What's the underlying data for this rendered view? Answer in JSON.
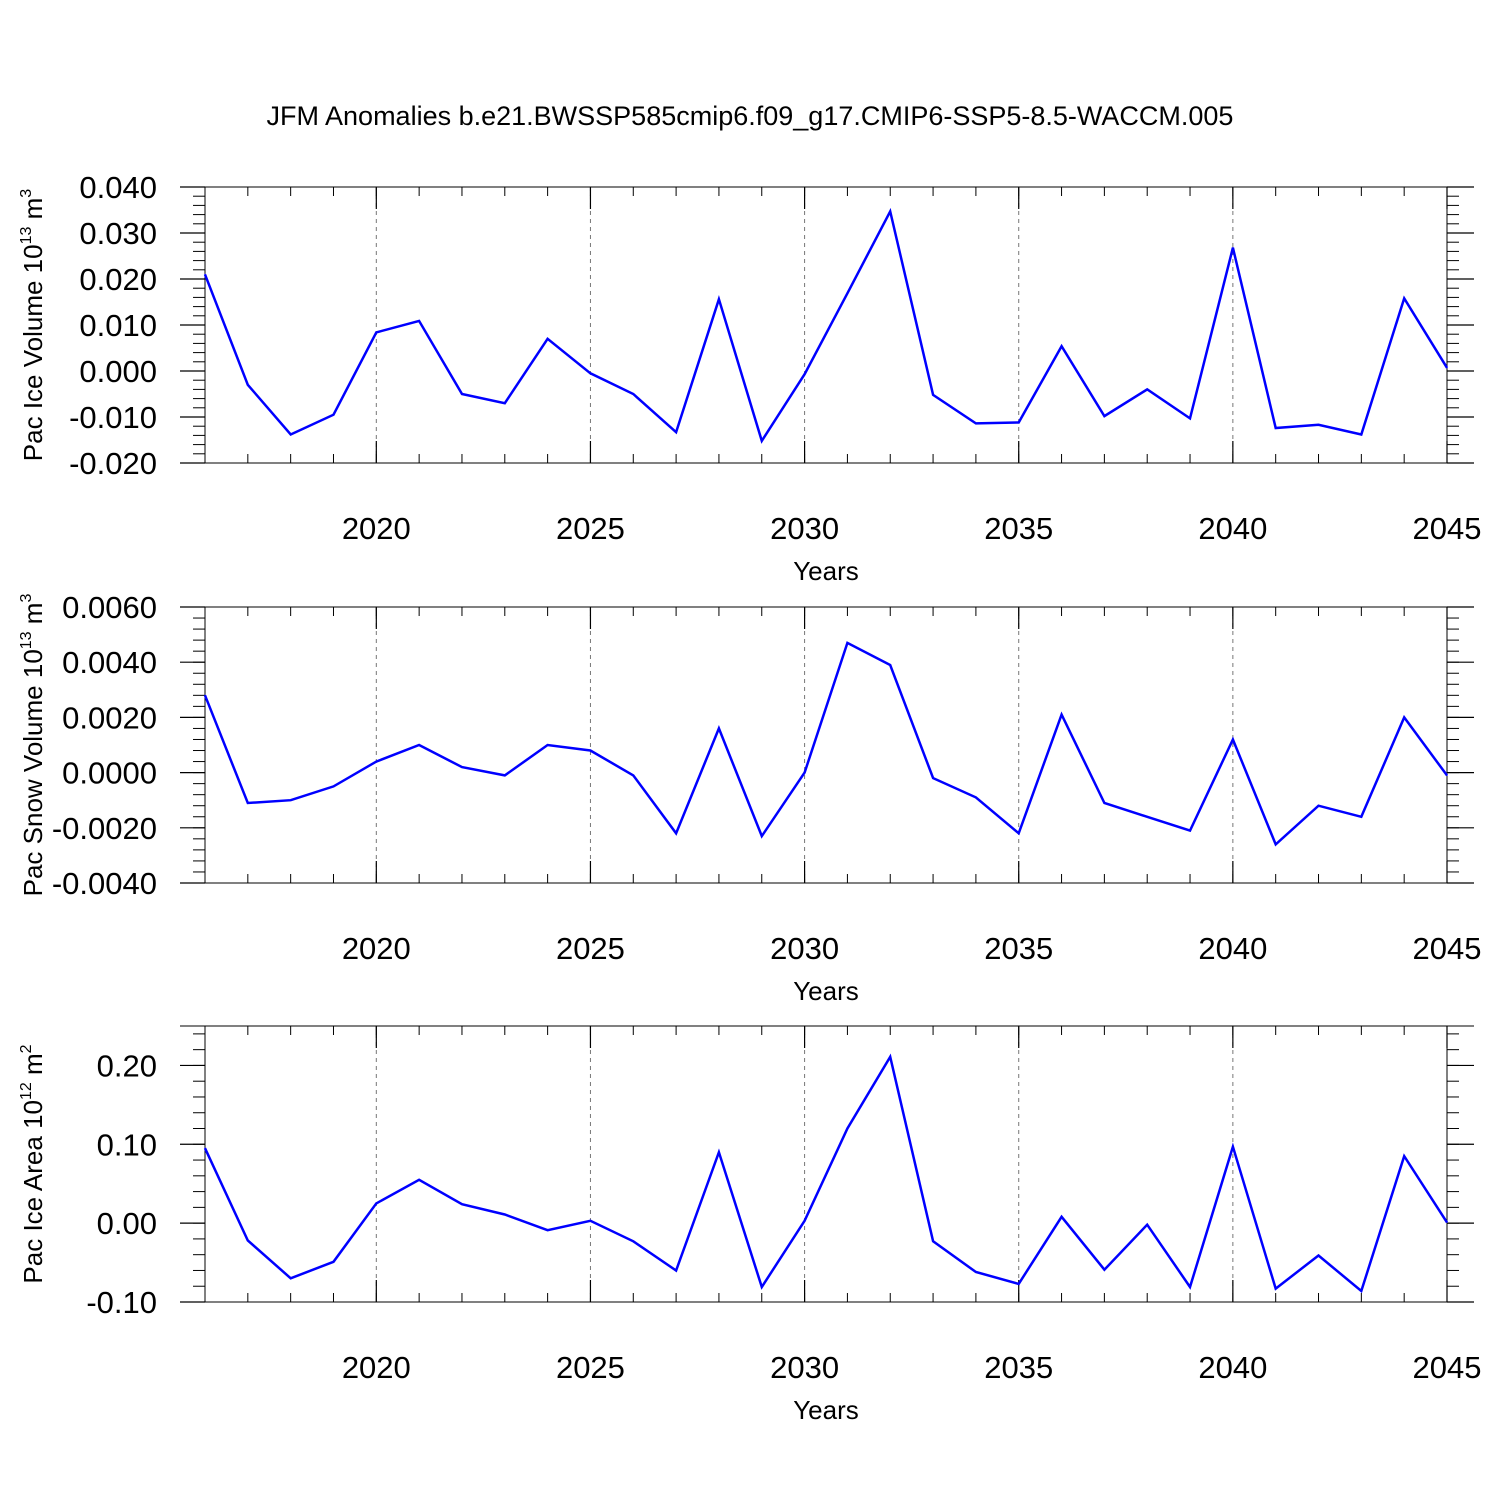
{
  "title": "JFM Anomalies b.e21.BWSSP585cmip6.f09_g17.CMIP6-SSP5-8.5-WACCM.005",
  "line_color": "#0000ff",
  "chart_data": [
    {
      "type": "line",
      "id": "ice-volume",
      "ylabel_main": "Pac Ice Volume 10",
      "ylabel_exp": "13",
      "ylabel_unit": " m",
      "ylabel_unit_exp": "3",
      "xlabel": "Years",
      "xlim": [
        2016,
        2045
      ],
      "ylim": [
        -0.02,
        0.04
      ],
      "yticks": [
        -0.02,
        -0.01,
        0.0,
        0.01,
        0.02,
        0.03,
        0.04
      ],
      "ytick_labels": [
        "-0.020",
        "-0.010",
        "0.000",
        "0.010",
        "0.020",
        "0.030",
        "0.040"
      ],
      "xticks": [
        2020,
        2025,
        2030,
        2035,
        2040,
        2045
      ],
      "xtick_labels": [
        "2020",
        "2025",
        "2030",
        "2035",
        "2040",
        "2045"
      ],
      "x": [
        2016,
        2017,
        2018,
        2019,
        2020,
        2021,
        2022,
        2023,
        2024,
        2025,
        2026,
        2027,
        2028,
        2029,
        2030,
        2031,
        2032,
        2033,
        2034,
        2035,
        2036,
        2037,
        2038,
        2039,
        2040,
        2041,
        2042,
        2043,
        2044,
        2045
      ],
      "values": [
        0.021,
        -0.003,
        -0.0138,
        -0.0095,
        0.0084,
        0.0109,
        -0.005,
        -0.007,
        0.007,
        -0.0005,
        -0.005,
        -0.0133,
        0.0156,
        -0.0152,
        -0.0007,
        0.0169,
        0.0347,
        -0.0052,
        -0.0114,
        -0.0112,
        0.0054,
        -0.0098,
        -0.004,
        -0.0103,
        0.0268,
        -0.0124,
        -0.0117,
        -0.0138,
        0.0158,
        0.0007
      ]
    },
    {
      "type": "line",
      "id": "snow-volume",
      "ylabel_main": "Pac Snow Volume 10",
      "ylabel_exp": "13",
      "ylabel_unit": " m",
      "ylabel_unit_exp": "3",
      "xlabel": "Years",
      "xlim": [
        2016,
        2045
      ],
      "ylim": [
        -0.004,
        0.006
      ],
      "yticks": [
        -0.004,
        -0.002,
        0.0,
        0.002,
        0.004,
        0.006
      ],
      "ytick_labels": [
        "-0.0040",
        "-0.0020",
        "0.0000",
        "0.0020",
        "0.0040",
        "0.0060"
      ],
      "xticks": [
        2020,
        2025,
        2030,
        2035,
        2040,
        2045
      ],
      "xtick_labels": [
        "2020",
        "2025",
        "2030",
        "2035",
        "2040",
        "2045"
      ],
      "x": [
        2016,
        2017,
        2018,
        2019,
        2020,
        2021,
        2022,
        2023,
        2024,
        2025,
        2026,
        2027,
        2028,
        2029,
        2030,
        2031,
        2032,
        2033,
        2034,
        2035,
        2036,
        2037,
        2038,
        2039,
        2040,
        2041,
        2042,
        2043,
        2044,
        2045
      ],
      "values": [
        0.0028,
        -0.0011,
        -0.001,
        -0.0005,
        0.0004,
        0.001,
        0.0002,
        -0.0001,
        0.001,
        0.0008,
        -0.0001,
        -0.0022,
        0.0016,
        -0.0023,
        0.0,
        0.0047,
        0.0039,
        -0.0002,
        -0.0009,
        -0.0022,
        0.0021,
        -0.0011,
        -0.0016,
        -0.0021,
        0.0012,
        -0.0026,
        -0.0012,
        -0.0016,
        0.002,
        -0.0001
      ]
    },
    {
      "type": "line",
      "id": "ice-area",
      "ylabel_main": "Pac Ice Area 10",
      "ylabel_exp": "12",
      "ylabel_unit": " m",
      "ylabel_unit_exp": "2",
      "xlabel": "Years",
      "xlim": [
        2016,
        2045
      ],
      "ylim": [
        -0.1,
        0.25
      ],
      "yticks": [
        -0.1,
        0.0,
        0.1,
        0.2
      ],
      "ytick_labels": [
        "-0.10",
        "0.00",
        "0.10",
        "0.20"
      ],
      "xticks": [
        2020,
        2025,
        2030,
        2035,
        2040,
        2045
      ],
      "xtick_labels": [
        "2020",
        "2025",
        "2030",
        "2035",
        "2040",
        "2045"
      ],
      "x": [
        2016,
        2017,
        2018,
        2019,
        2020,
        2021,
        2022,
        2023,
        2024,
        2025,
        2026,
        2027,
        2028,
        2029,
        2030,
        2031,
        2032,
        2033,
        2034,
        2035,
        2036,
        2037,
        2038,
        2039,
        2040,
        2041,
        2042,
        2043,
        2044,
        2045
      ],
      "values": [
        0.095,
        -0.022,
        -0.07,
        -0.049,
        0.025,
        0.055,
        0.024,
        0.011,
        -0.009,
        0.003,
        -0.023,
        -0.06,
        0.09,
        -0.081,
        0.003,
        0.12,
        0.211,
        -0.023,
        -0.062,
        -0.077,
        0.008,
        -0.059,
        -0.002,
        -0.081,
        0.097,
        -0.083,
        -0.041,
        -0.086,
        0.085,
        0.001
      ]
    }
  ]
}
